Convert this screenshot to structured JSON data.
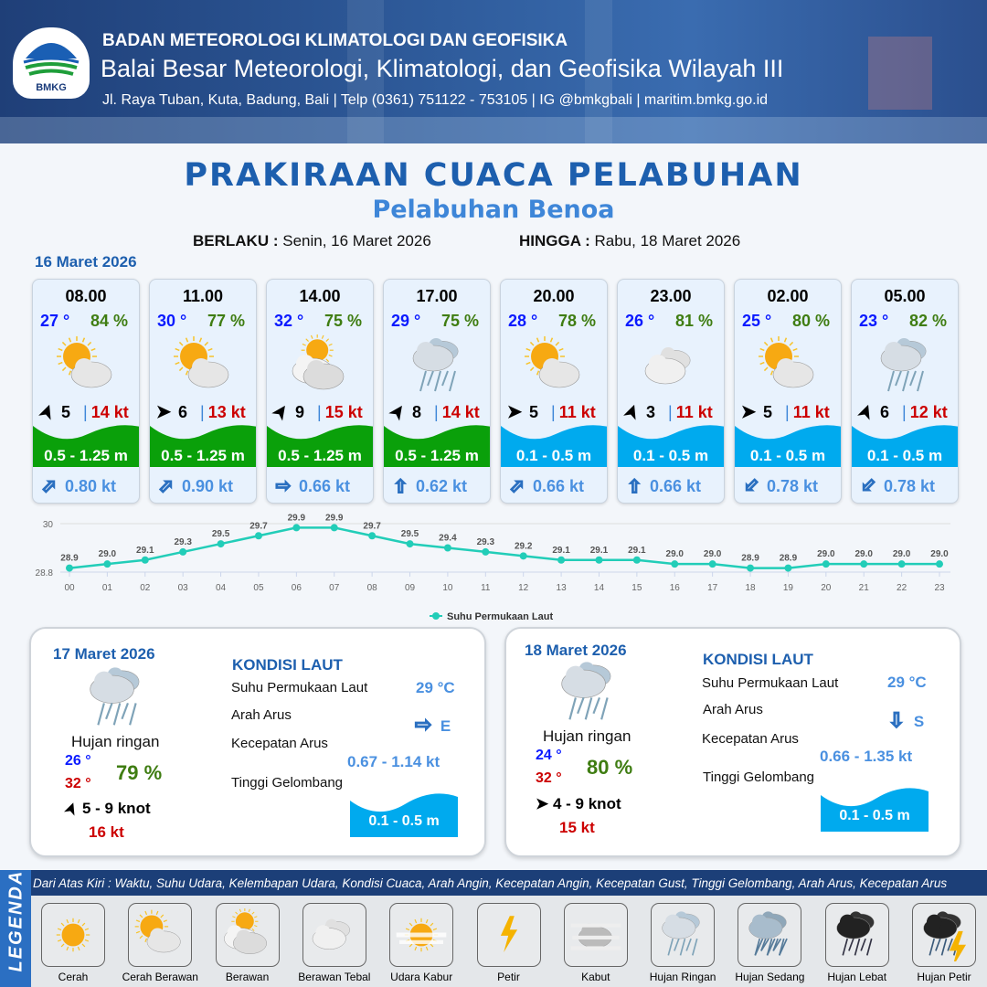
{
  "header": {
    "org": "BADAN METEOROLOGI KLIMATOLOGI DAN GEOFISIKA",
    "office": "Balai Besar Meteorologi, Klimatologi, dan Geofisika Wilayah III",
    "contact": "Jl. Raya Tuban, Kuta, Badung, Bali | Telp (0361) 751122 - 753105 | IG @bmkgbali | maritim.bmkg.go.id",
    "logo_text": "BMKG"
  },
  "title": "PRAKIRAAN CUACA PELABUHAN",
  "subtitle": "Pelabuhan Benoa",
  "validity": {
    "from_label": "BERLAKU :",
    "from": "Senin, 16 Maret 2026",
    "to_label": "HINGGA :",
    "to": "Rabu, 18 Maret 2026"
  },
  "day1_date": "16 Maret 2026",
  "colors": {
    "wave_high": "#0aa00a",
    "wave_low": "#00aaee",
    "temp": "#0a1aff",
    "humidity": "#3f7d12",
    "gust": "#cc0000",
    "current": "#4a90e0",
    "chart_line": "#22cdb8"
  },
  "forecasts": [
    {
      "time": "08.00",
      "temp": "27 °",
      "rh": "84 %",
      "weather": "cerah-berawan",
      "wind_dir_deg": 20,
      "wind": "5",
      "gust": "14 kt",
      "wave": "0.5 - 1.25 m",
      "wave_level": "high",
      "cur_dir_deg": 45,
      "cur": "0.80 kt"
    },
    {
      "time": "11.00",
      "temp": "30 °",
      "rh": "77 %",
      "weather": "cerah-berawan",
      "wind_dir_deg": 90,
      "wind": "6",
      "gust": "13 kt",
      "wave": "0.5 - 1.25 m",
      "wave_level": "high",
      "cur_dir_deg": 45,
      "cur": "0.90 kt"
    },
    {
      "time": "14.00",
      "temp": "32 °",
      "rh": "75 %",
      "weather": "berawan",
      "wind_dir_deg": 35,
      "wind": "9",
      "gust": "15 kt",
      "wave": "0.5 - 1.25 m",
      "wave_level": "high",
      "cur_dir_deg": 90,
      "cur": "0.66 kt"
    },
    {
      "time": "17.00",
      "temp": "29 °",
      "rh": "75 %",
      "weather": "hujan-ringan",
      "wind_dir_deg": 35,
      "wind": "8",
      "gust": "14 kt",
      "wave": "0.5 - 1.25 m",
      "wave_level": "high",
      "cur_dir_deg": 0,
      "cur": "0.62 kt"
    },
    {
      "time": "20.00",
      "temp": "28 °",
      "rh": "78 %",
      "weather": "cerah-berawan",
      "wind_dir_deg": 90,
      "wind": "5",
      "gust": "11 kt",
      "wave": "0.1 - 0.5 m",
      "wave_level": "low",
      "cur_dir_deg": 45,
      "cur": "0.66 kt"
    },
    {
      "time": "23.00",
      "temp": "26 °",
      "rh": "81 %",
      "weather": "berawan-tebal",
      "wind_dir_deg": 20,
      "wind": "3",
      "gust": "11 kt",
      "wave": "0.1 - 0.5 m",
      "wave_level": "low",
      "cur_dir_deg": 0,
      "cur": "0.66 kt"
    },
    {
      "time": "02.00",
      "temp": "25 °",
      "rh": "80 %",
      "weather": "cerah-berawan",
      "wind_dir_deg": 90,
      "wind": "5",
      "gust": "11 kt",
      "wave": "0.1 - 0.5 m",
      "wave_level": "low",
      "cur_dir_deg": 225,
      "cur": "0.78 kt"
    },
    {
      "time": "05.00",
      "temp": "23 °",
      "rh": "82 %",
      "weather": "hujan-ringan",
      "wind_dir_deg": 20,
      "wind": "6",
      "gust": "12 kt",
      "wave": "0.1 - 0.5 m",
      "wave_level": "low",
      "cur_dir_deg": 225,
      "cur": "0.78 kt"
    }
  ],
  "chart_data": {
    "type": "line",
    "x": [
      "00",
      "01",
      "02",
      "03",
      "04",
      "05",
      "06",
      "07",
      "08",
      "09",
      "10",
      "11",
      "12",
      "13",
      "14",
      "15",
      "16",
      "17",
      "18",
      "19",
      "20",
      "21",
      "22",
      "23"
    ],
    "series": [
      {
        "name": "Suhu Permukaan Laut",
        "values": [
          28.9,
          29.0,
          29.1,
          29.3,
          29.5,
          29.7,
          29.9,
          29.9,
          29.7,
          29.5,
          29.4,
          29.3,
          29.2,
          29.1,
          29.1,
          29.1,
          29.0,
          29.0,
          28.9,
          28.9,
          29.0,
          29.0,
          29.0,
          29.0
        ]
      }
    ],
    "yticks": [
      "30",
      "28.8"
    ],
    "ylim": [
      28.8,
      30
    ],
    "legend": "bottom",
    "grid": true
  },
  "days": [
    {
      "date": "17 Maret 2026",
      "weather": "hujan-ringan",
      "desc": "Hujan ringan",
      "tmin": "26 °",
      "tmax": "32 °",
      "rh": "79 %",
      "wind_dir_deg": 20,
      "wind": "5 - 9 knot",
      "gust": "16 kt",
      "kondisi": "KONDISI LAUT",
      "sst_label": "Suhu Permukaan Laut",
      "sst": "29 °C",
      "dir_label": "Arah Arus",
      "cur_dir_deg": 90,
      "cur_dir": "E",
      "speed_label": "Kecepatan Arus",
      "speed": "0.67 - 1.14 kt",
      "wave_label": "Tinggi Gelombang",
      "wave": "0.1 - 0.5 m"
    },
    {
      "date": "18 Maret 2026",
      "weather": "hujan-ringan",
      "desc": "Hujan ringan",
      "tmin": "24 °",
      "tmax": "32 °",
      "rh": "80 %",
      "wind_dir_deg": 90,
      "wind": "4 - 9 knot",
      "gust": "15 kt",
      "kondisi": "KONDISI LAUT",
      "sst_label": "Suhu Permukaan Laut",
      "sst": "29 °C",
      "dir_label": "Arah Arus",
      "cur_dir_deg": 180,
      "cur_dir": "S",
      "speed_label": "Kecepatan Arus",
      "speed": "0.66 - 1.35 kt",
      "wave_label": "Tinggi Gelombang",
      "wave": "0.1 - 0.5 m"
    }
  ],
  "legend": {
    "tag": "LEGENDA",
    "description": "Dari Atas Kiri : Waktu, Suhu Udara, Kelembapan Udara, Kondisi Cuaca, Arah Angin, Kecepatan Angin, Kecepatan Gust, Tinggi Gelombang, Arah Arus, Kecepatan Arus",
    "items": [
      {
        "label": "Cerah",
        "icon": "cerah"
      },
      {
        "label": "Cerah Berawan",
        "icon": "cerah-berawan"
      },
      {
        "label": "Berawan",
        "icon": "berawan"
      },
      {
        "label": "Berawan Tebal",
        "icon": "berawan-tebal"
      },
      {
        "label": "Udara Kabur",
        "icon": "udara-kabur"
      },
      {
        "label": "Petir",
        "icon": "petir"
      },
      {
        "label": "Kabut",
        "icon": "kabut"
      },
      {
        "label": "Hujan Ringan",
        "icon": "hujan-ringan"
      },
      {
        "label": "Hujan Sedang",
        "icon": "hujan-sedang"
      },
      {
        "label": "Hujan Lebat",
        "icon": "hujan-lebat"
      },
      {
        "label": "Hujan Petir",
        "icon": "hujan-petir"
      }
    ]
  }
}
